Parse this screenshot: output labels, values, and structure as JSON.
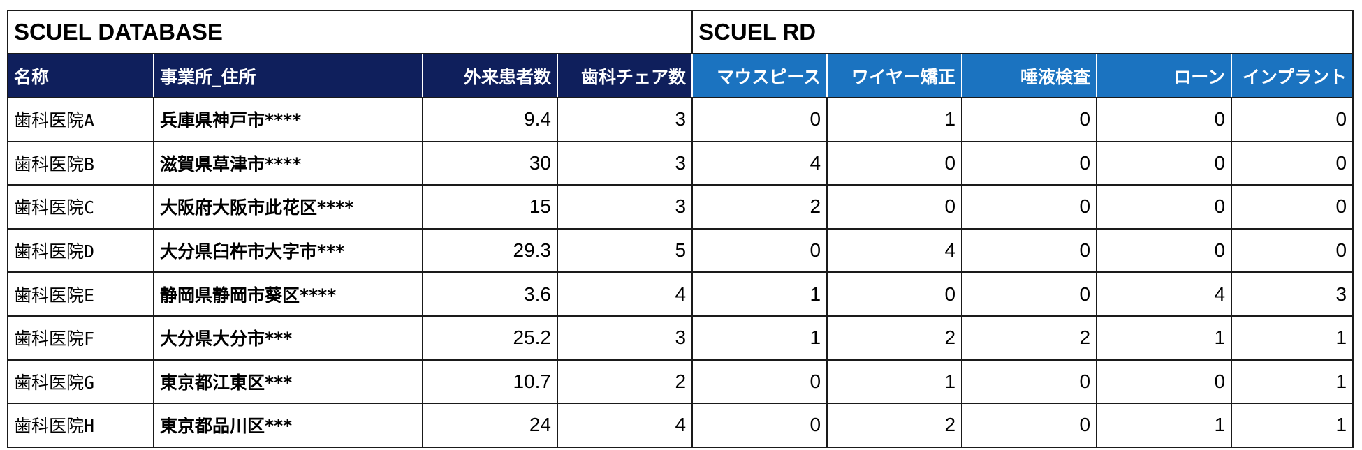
{
  "groups": {
    "database": "SCUEL DATABASE",
    "rd": "SCUEL RD"
  },
  "columns": {
    "name": "名称",
    "address": "事業所_住所",
    "outpatients": "外来患者数",
    "chairs": "歯科チェア数",
    "mouthpiece": "マウスピース",
    "wire_ortho": "ワイヤー矯正",
    "saliva_test": "唾液検査",
    "loan": "ローン",
    "implant": "インプラント"
  },
  "colors": {
    "database_header": "#0f1f5c",
    "rd_header": "#1b73c0"
  },
  "rows": [
    {
      "name": "歯科医院A",
      "address": "兵庫県神戸市****",
      "outpatients": "9.4",
      "chairs": "3",
      "mouthpiece": "0",
      "wire_ortho": "1",
      "saliva_test": "0",
      "loan": "0",
      "implant": "0"
    },
    {
      "name": "歯科医院B",
      "address": "滋賀県草津市****",
      "outpatients": "30",
      "chairs": "3",
      "mouthpiece": "4",
      "wire_ortho": "0",
      "saliva_test": "0",
      "loan": "0",
      "implant": "0"
    },
    {
      "name": "歯科医院C",
      "address": "大阪府大阪市此花区****",
      "outpatients": "15",
      "chairs": "3",
      "mouthpiece": "2",
      "wire_ortho": "0",
      "saliva_test": "0",
      "loan": "0",
      "implant": "0"
    },
    {
      "name": "歯科医院D",
      "address": "大分県臼杵市大字市***",
      "outpatients": "29.3",
      "chairs": "5",
      "mouthpiece": "0",
      "wire_ortho": "4",
      "saliva_test": "0",
      "loan": "0",
      "implant": "0"
    },
    {
      "name": "歯科医院E",
      "address": "静岡県静岡市葵区****",
      "outpatients": "3.6",
      "chairs": "4",
      "mouthpiece": "1",
      "wire_ortho": "0",
      "saliva_test": "0",
      "loan": "4",
      "implant": "3"
    },
    {
      "name": "歯科医院F",
      "address": "大分県大分市***",
      "outpatients": "25.2",
      "chairs": "3",
      "mouthpiece": "1",
      "wire_ortho": "2",
      "saliva_test": "2",
      "loan": "1",
      "implant": "1"
    },
    {
      "name": "歯科医院G",
      "address": "東京都江東区***",
      "outpatients": "10.7",
      "chairs": "2",
      "mouthpiece": "0",
      "wire_ortho": "1",
      "saliva_test": "0",
      "loan": "0",
      "implant": "1"
    },
    {
      "name": "歯科医院H",
      "address": "東京都品川区***",
      "outpatients": "24",
      "chairs": "4",
      "mouthpiece": "0",
      "wire_ortho": "2",
      "saliva_test": "0",
      "loan": "1",
      "implant": "1"
    }
  ]
}
